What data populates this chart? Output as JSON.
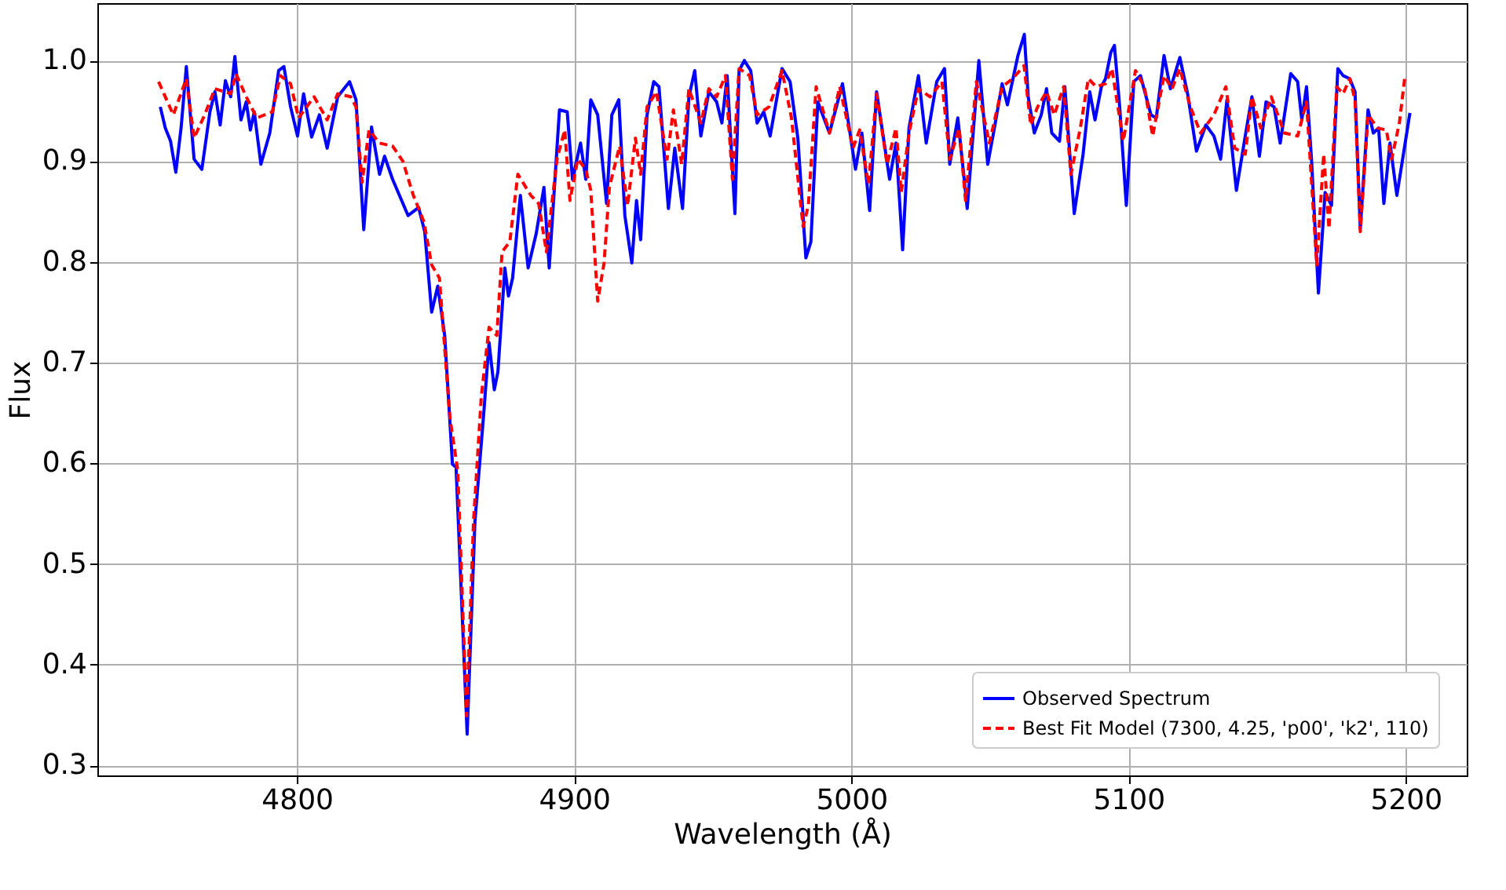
{
  "chart_data": {
    "type": "line",
    "xlabel": "Wavelength (Å)",
    "ylabel": "Flux",
    "xlim": [
      4728,
      5222
    ],
    "ylim": [
      0.29,
      1.057
    ],
    "xticks": [
      4800,
      4900,
      5000,
      5100,
      5200
    ],
    "yticks": [
      0.3,
      0.4,
      0.5,
      0.6,
      0.7,
      0.8,
      0.9,
      {
        "value": 1.0,
        "label": "1.0"
      }
    ],
    "grid": true,
    "legend": "bottom right",
    "series": [
      {
        "name": "Observed Spectrum",
        "color": "#0000ff",
        "line_style": "solid",
        "x": [
          4750.7,
          4752.5,
          4754.4,
          4756.3,
          4758.2,
          4760.1,
          4762.9,
          4765.7,
          4768.6,
          4770.4,
          4772.3,
          4774.2,
          4776.1,
          4777.6,
          4779.8,
          4781.7,
          4783.2,
          4784.6,
          4787.0,
          4790.2,
          4793.4,
          4795.3,
          4797.7,
          4800.2,
          4802.4,
          4805.3,
          4808.1,
          4810.9,
          4814.7,
          4819.0,
          4821.3,
          4824.1,
          4826.9,
          4829.8,
          4831.6,
          4834.5,
          4840.1,
          4843.9,
          4846.1,
          4848.6,
          4850.8,
          4853.3,
          4856.1,
          4857.4,
          4861.4,
          4864.2,
          4867.4,
          4869.3,
          4871.2,
          4872.5,
          4875.0,
          4876.3,
          4877.8,
          4880.6,
          4883.4,
          4886.3,
          4889.1,
          4891.0,
          4894.7,
          4897.5,
          4899.4,
          4902.3,
          4904.2,
          4906.0,
          4908.5,
          4911.7,
          4913.6,
          4916.1,
          4918.3,
          4920.8,
          4922.5,
          4924.0,
          4926.3,
          4928.7,
          4930.6,
          4934.0,
          4936.3,
          4939.1,
          4941.4,
          4943.5,
          4945.7,
          4948.6,
          4951.4,
          4953.3,
          4955.2,
          4958.0,
          4959.5,
          4961.4,
          4963.7,
          4966.0,
          4968.4,
          4970.7,
          4975.0,
          4977.9,
          4980.7,
          4983.6,
          4985.4,
          4987.9,
          4992.1,
          4996.8,
          5001.5,
          5003.8,
          5006.6,
          5009.1,
          5013.8,
          5016.1,
          5018.5,
          5020.8,
          5024.2,
          5027.0,
          5030.8,
          5033.6,
          5035.5,
          5038.4,
          5041.8,
          5046.0,
          5049.2,
          5051.6,
          5054.4,
          5056.3,
          5060.1,
          5062.4,
          5063.8,
          5066.0,
          5068.5,
          5070.4,
          5072.3,
          5075.1,
          5077.0,
          5080.4,
          5083.6,
          5086.0,
          5087.9,
          5090.2,
          5091.7,
          5093.6,
          5094.9,
          5096.8,
          5099.2,
          5101.9,
          5104.3,
          5108.1,
          5110.0,
          5112.8,
          5115.1,
          5118.5,
          5121.3,
          5124.5,
          5127.9,
          5130.8,
          5133.2,
          5135.5,
          5138.9,
          5142.1,
          5144.5,
          5147.2,
          5149.6,
          5152.5,
          5154.7,
          5158.5,
          5161.0,
          5162.5,
          5164.2,
          5166.0,
          5168.5,
          5170.9,
          5173.2,
          5175.5,
          5177.4,
          5179.8,
          5181.7,
          5183.6,
          5186.4,
          5188.3,
          5190.2,
          5192.1,
          5194.3,
          5196.8,
          5201.5
        ],
        "values": [
          0.954,
          0.933,
          0.92,
          0.889,
          0.933,
          0.994,
          0.902,
          0.892,
          0.949,
          0.969,
          0.936,
          0.98,
          0.964,
          1.004,
          0.941,
          0.959,
          0.931,
          0.949,
          0.897,
          0.928,
          0.99,
          0.994,
          0.954,
          0.925,
          0.967,
          0.924,
          0.946,
          0.913,
          0.964,
          0.979,
          0.961,
          0.832,
          0.934,
          0.887,
          0.905,
          0.882,
          0.846,
          0.854,
          0.83,
          0.75,
          0.776,
          0.727,
          0.599,
          0.596,
          0.331,
          0.542,
          0.65,
          0.72,
          0.673,
          0.691,
          0.794,
          0.766,
          0.784,
          0.866,
          0.794,
          0.828,
          0.874,
          0.794,
          0.951,
          0.949,
          0.882,
          0.918,
          0.882,
          0.961,
          0.946,
          0.858,
          0.946,
          0.961,
          0.846,
          0.799,
          0.861,
          0.822,
          0.946,
          0.979,
          0.974,
          0.853,
          0.913,
          0.853,
          0.964,
          0.99,
          0.925,
          0.969,
          0.959,
          0.938,
          0.985,
          0.848,
          0.99,
          1.0,
          0.99,
          0.938,
          0.949,
          0.925,
          0.992,
          0.979,
          0.923,
          0.804,
          0.82,
          0.959,
          0.928,
          0.977,
          0.892,
          0.928,
          0.851,
          0.969,
          0.882,
          0.918,
          0.812,
          0.933,
          0.985,
          0.918,
          0.979,
          0.992,
          0.897,
          0.943,
          0.853,
          1.0,
          0.897,
          0.933,
          0.977,
          0.956,
          1.005,
          1.026,
          0.964,
          0.928,
          0.946,
          0.972,
          0.928,
          0.92,
          0.974,
          0.848,
          0.907,
          0.969,
          0.941,
          0.974,
          0.982,
          1.008,
          1.015,
          0.954,
          0.856,
          0.979,
          0.985,
          0.946,
          0.943,
          1.005,
          0.972,
          1.003,
          0.967,
          0.91,
          0.936,
          0.925,
          0.902,
          0.961,
          0.871,
          0.925,
          0.964,
          0.905,
          0.959,
          0.954,
          0.918,
          0.987,
          0.979,
          0.941,
          0.974,
          0.902,
          0.769,
          0.869,
          0.856,
          0.992,
          0.985,
          0.982,
          0.969,
          0.833,
          0.951,
          0.928,
          0.933,
          0.858,
          0.918,
          0.866,
          0.948
        ]
      },
      {
        "name": "Best Fit Model (7300, 4.25, 'p00', 'k2', 110)",
        "color": "#ff0000",
        "line_style": "dashed",
        "x": [
          4750.1,
          4755.4,
          4760.1,
          4762.9,
          4766.7,
          4770.4,
          4776.1,
          4778.0,
          4781.7,
          4785.5,
          4791.1,
          4794.0,
          4797.7,
          4800.6,
          4806.2,
          4810.9,
          4814.7,
          4819.4,
          4821.3,
          4823.5,
          4826.0,
          4829.8,
          4834.5,
          4838.2,
          4842.0,
          4845.8,
          4848.6,
          4851.4,
          4855.2,
          4858.0,
          4861.2,
          4863.7,
          4866.5,
          4869.3,
          4872.1,
          4874.0,
          4876.8,
          4879.7,
          4884.4,
          4887.2,
          4890.0,
          4893.8,
          4896.6,
          4898.5,
          4901.3,
          4904.2,
          4906.0,
          4908.5,
          4910.8,
          4912.7,
          4916.4,
          4919.3,
          4922.1,
          4924.0,
          4926.3,
          4929.7,
          4933.5,
          4935.8,
          4938.8,
          4941.4,
          4945.7,
          4948.6,
          4951.4,
          4954.6,
          4957.1,
          4959.5,
          4963.3,
          4966.0,
          4970.3,
          4975.0,
          4978.4,
          4982.6,
          4984.5,
          4987.3,
          4992.1,
          4995.8,
          5000.6,
          5003.0,
          5006.2,
          5009.1,
          5012.9,
          5016.1,
          5018.0,
          5020.8,
          5024.2,
          5028.4,
          5032.7,
          5035.5,
          5038.9,
          5041.2,
          5045.1,
          5049.8,
          5054.4,
          5058.2,
          5062.3,
          5064.7,
          5067.2,
          5070.4,
          5073.2,
          5076.6,
          5079.2,
          5082.6,
          5085.5,
          5088.3,
          5091.7,
          5094.0,
          5098.1,
          5102.5,
          5105.7,
          5108.7,
          5112.8,
          5115.7,
          5118.5,
          5122.3,
          5126.0,
          5130.8,
          5135.1,
          5138.3,
          5142.1,
          5144.5,
          5147.7,
          5151.5,
          5156.2,
          5161.0,
          5164.2,
          5167.9,
          5170.4,
          5172.3,
          5175.1,
          5177.4,
          5179.8,
          5181.7,
          5183.6,
          5186.4,
          5189.8,
          5193.0,
          5194.9,
          5197.7,
          5199.6
        ],
        "values": [
          0.979,
          0.946,
          0.982,
          0.923,
          0.946,
          0.972,
          0.967,
          0.987,
          0.964,
          0.943,
          0.949,
          0.985,
          0.977,
          0.943,
          0.964,
          0.941,
          0.967,
          0.964,
          0.954,
          0.879,
          0.931,
          0.918,
          0.915,
          0.9,
          0.866,
          0.84,
          0.797,
          0.784,
          0.645,
          0.593,
          0.349,
          0.542,
          0.666,
          0.735,
          0.727,
          0.81,
          0.82,
          0.887,
          0.866,
          0.858,
          0.81,
          0.902,
          0.931,
          0.861,
          0.902,
          0.892,
          0.871,
          0.761,
          0.799,
          0.874,
          0.915,
          0.856,
          0.923,
          0.887,
          0.954,
          0.969,
          0.902,
          0.951,
          0.897,
          0.972,
          0.938,
          0.972,
          0.964,
          0.985,
          0.882,
          0.992,
          0.985,
          0.946,
          0.954,
          0.99,
          0.943,
          0.835,
          0.856,
          0.974,
          0.928,
          0.974,
          0.913,
          0.931,
          0.877,
          0.967,
          0.897,
          0.933,
          0.869,
          0.928,
          0.972,
          0.964,
          0.979,
          0.902,
          0.933,
          0.861,
          0.979,
          0.918,
          0.974,
          0.982,
          0.995,
          0.936,
          0.954,
          0.969,
          0.946,
          0.974,
          0.887,
          0.933,
          0.982,
          0.974,
          0.977,
          0.992,
          0.92,
          0.99,
          0.974,
          0.925,
          0.985,
          0.972,
          0.992,
          0.954,
          0.928,
          0.946,
          0.974,
          0.913,
          0.907,
          0.964,
          0.933,
          0.964,
          0.928,
          0.925,
          0.959,
          0.797,
          0.907,
          0.833,
          0.974,
          0.967,
          0.982,
          0.961,
          0.83,
          0.946,
          0.933,
          0.931,
          0.902,
          0.938,
          0.982
        ]
      }
    ]
  }
}
